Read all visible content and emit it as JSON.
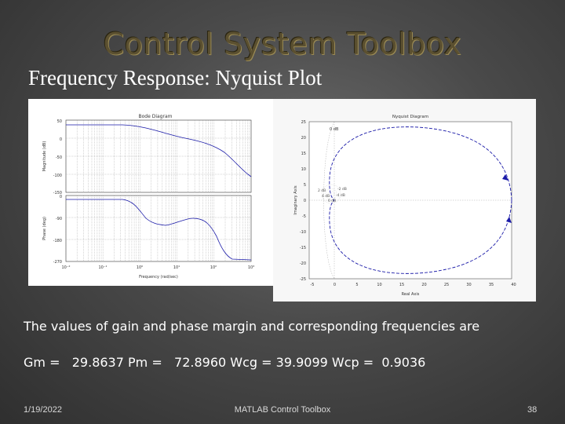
{
  "slide": {
    "title": "Control System Toolbox",
    "subtitle": "Frequency Response:  Nyquist Plot",
    "body_text": "The values of gain and phase margin and corresponding frequencies are",
    "metrics": {
      "gm_label": "Gm =",
      "gm_value": "29.8637",
      "pm_label": "Pm =",
      "pm_value": "72.8960",
      "wcg_label": "Wcg =",
      "wcg_value": "39.9099",
      "wcp_label": "Wcp =",
      "wcp_value": "0.9036"
    },
    "footer": {
      "date": "1/19/2022",
      "center": "MATLAB Control Toolbox",
      "page": "38"
    }
  },
  "bode": {
    "title": "Bode Diagram",
    "mag_ylabel": "Magnitude (dB)",
    "phase_ylabel": "Phase (deg)",
    "xlabel": "Frequency (rad/sec)",
    "mag_ticks": [
      "50",
      "0",
      "-50",
      "-100",
      "-150"
    ],
    "phase_ticks": [
      "0",
      "-90",
      "-180",
      "-270"
    ],
    "x_ticks": [
      "10⁻²",
      "10⁻¹",
      "10⁰",
      "10¹",
      "10²",
      "10³"
    ]
  },
  "nyquist": {
    "title": "Nyquist Diagram",
    "xlabel": "Real Axis",
    "ylabel": "Imaginary Axis",
    "y_ticks": [
      "25",
      "20",
      "15",
      "10",
      "5",
      "0",
      "-5",
      "-10",
      "-15",
      "-20",
      "-25"
    ],
    "x_ticks": [
      "-5",
      "0",
      "5",
      "10",
      "15",
      "20",
      "25",
      "30",
      "35",
      "40"
    ],
    "db_label": "0 dB",
    "db_labels_small": [
      "2 dB",
      "-2 dB",
      "4 dB",
      "-4 dB",
      "6 dB"
    ]
  },
  "colors": {
    "title_text": "#5b5030",
    "curve": "#1a1aa8",
    "grid": "#9a9a9a"
  }
}
